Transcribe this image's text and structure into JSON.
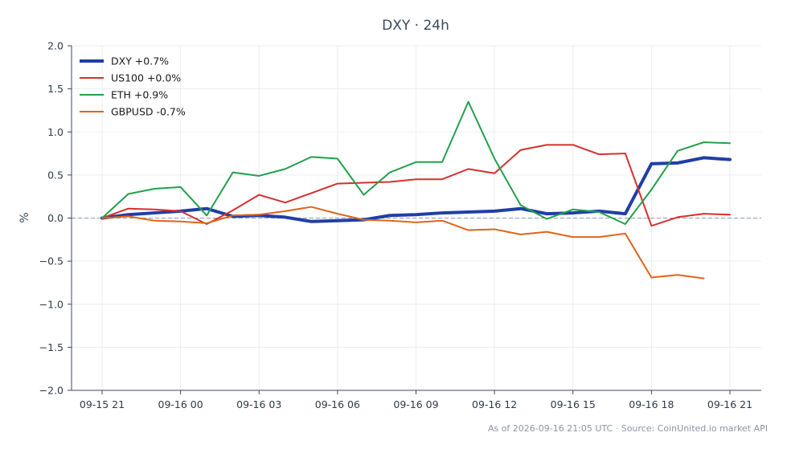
{
  "chart_data": {
    "type": "line",
    "title": "DXY · 24h",
    "ylabel": "%",
    "xlabel": "",
    "ylim": [
      -2.0,
      2.0
    ],
    "yticks": [
      2.0,
      1.5,
      1.0,
      0.5,
      0.0,
      -0.5,
      -1.0,
      -1.5,
      -2.0
    ],
    "ytick_labels": [
      "2.0",
      "1.5",
      "1.0",
      "0.5",
      "0.0",
      "−0.5",
      "−1.0",
      "−1.5",
      "−2.0"
    ],
    "x_tick_labels": [
      "09-15 21",
      "09-16 00",
      "09-16 03",
      "09-16 06",
      "09-16 09",
      "09-16 12",
      "09-16 15",
      "09-16 18",
      "09-16 21"
    ],
    "x_tick_hours": [
      0,
      3,
      6,
      9,
      12,
      15,
      18,
      21,
      24
    ],
    "x_hours": [
      0,
      1,
      2,
      3,
      4,
      5,
      6,
      7,
      8,
      9,
      10,
      11,
      12,
      13,
      14,
      15,
      16,
      17,
      18,
      19,
      20,
      21,
      22,
      23,
      24
    ],
    "zero_line": true,
    "grid": true,
    "legend_position": "top-left",
    "series": [
      {
        "name": "DXY +0.7%",
        "color": "#1f3fa6",
        "width": 4,
        "values": [
          0.0,
          0.04,
          0.06,
          0.08,
          0.11,
          0.02,
          0.03,
          0.01,
          -0.04,
          -0.03,
          -0.02,
          0.03,
          0.04,
          0.06,
          0.07,
          0.08,
          0.11,
          0.05,
          0.06,
          0.08,
          0.05,
          0.63,
          0.64,
          0.7,
          0.68
        ]
      },
      {
        "name": "US100 +0.0%",
        "color": "#d62f2f",
        "width": 2,
        "values": [
          0.0,
          0.11,
          0.1,
          0.08,
          -0.07,
          0.09,
          0.27,
          0.18,
          0.29,
          0.4,
          0.41,
          0.42,
          0.45,
          0.45,
          0.57,
          0.52,
          0.79,
          0.85,
          0.85,
          0.74,
          0.75,
          -0.09,
          0.01,
          0.05,
          0.04
        ]
      },
      {
        "name": "ETH +0.9%",
        "color": "#22a04b",
        "width": 2,
        "values": [
          0.0,
          0.28,
          0.34,
          0.36,
          0.03,
          0.53,
          0.49,
          0.57,
          0.71,
          0.69,
          0.27,
          0.53,
          0.65,
          0.65,
          1.35,
          0.69,
          0.15,
          -0.01,
          0.1,
          0.07,
          -0.07,
          0.33,
          0.78,
          0.88,
          0.87
        ]
      },
      {
        "name": "GBPUSD -0.7%",
        "color": "#e06418",
        "width": 2,
        "values": [
          0.0,
          0.02,
          -0.03,
          -0.04,
          -0.06,
          0.03,
          0.04,
          0.08,
          0.13,
          0.05,
          -0.02,
          -0.03,
          -0.05,
          -0.03,
          -0.14,
          -0.13,
          -0.19,
          -0.16,
          -0.22,
          -0.22,
          -0.18,
          -0.69,
          -0.66,
          -0.7,
          null
        ]
      }
    ],
    "footer": "As of 2026-09-16 21:05 UTC · Source: CoinUnited.io market API"
  }
}
